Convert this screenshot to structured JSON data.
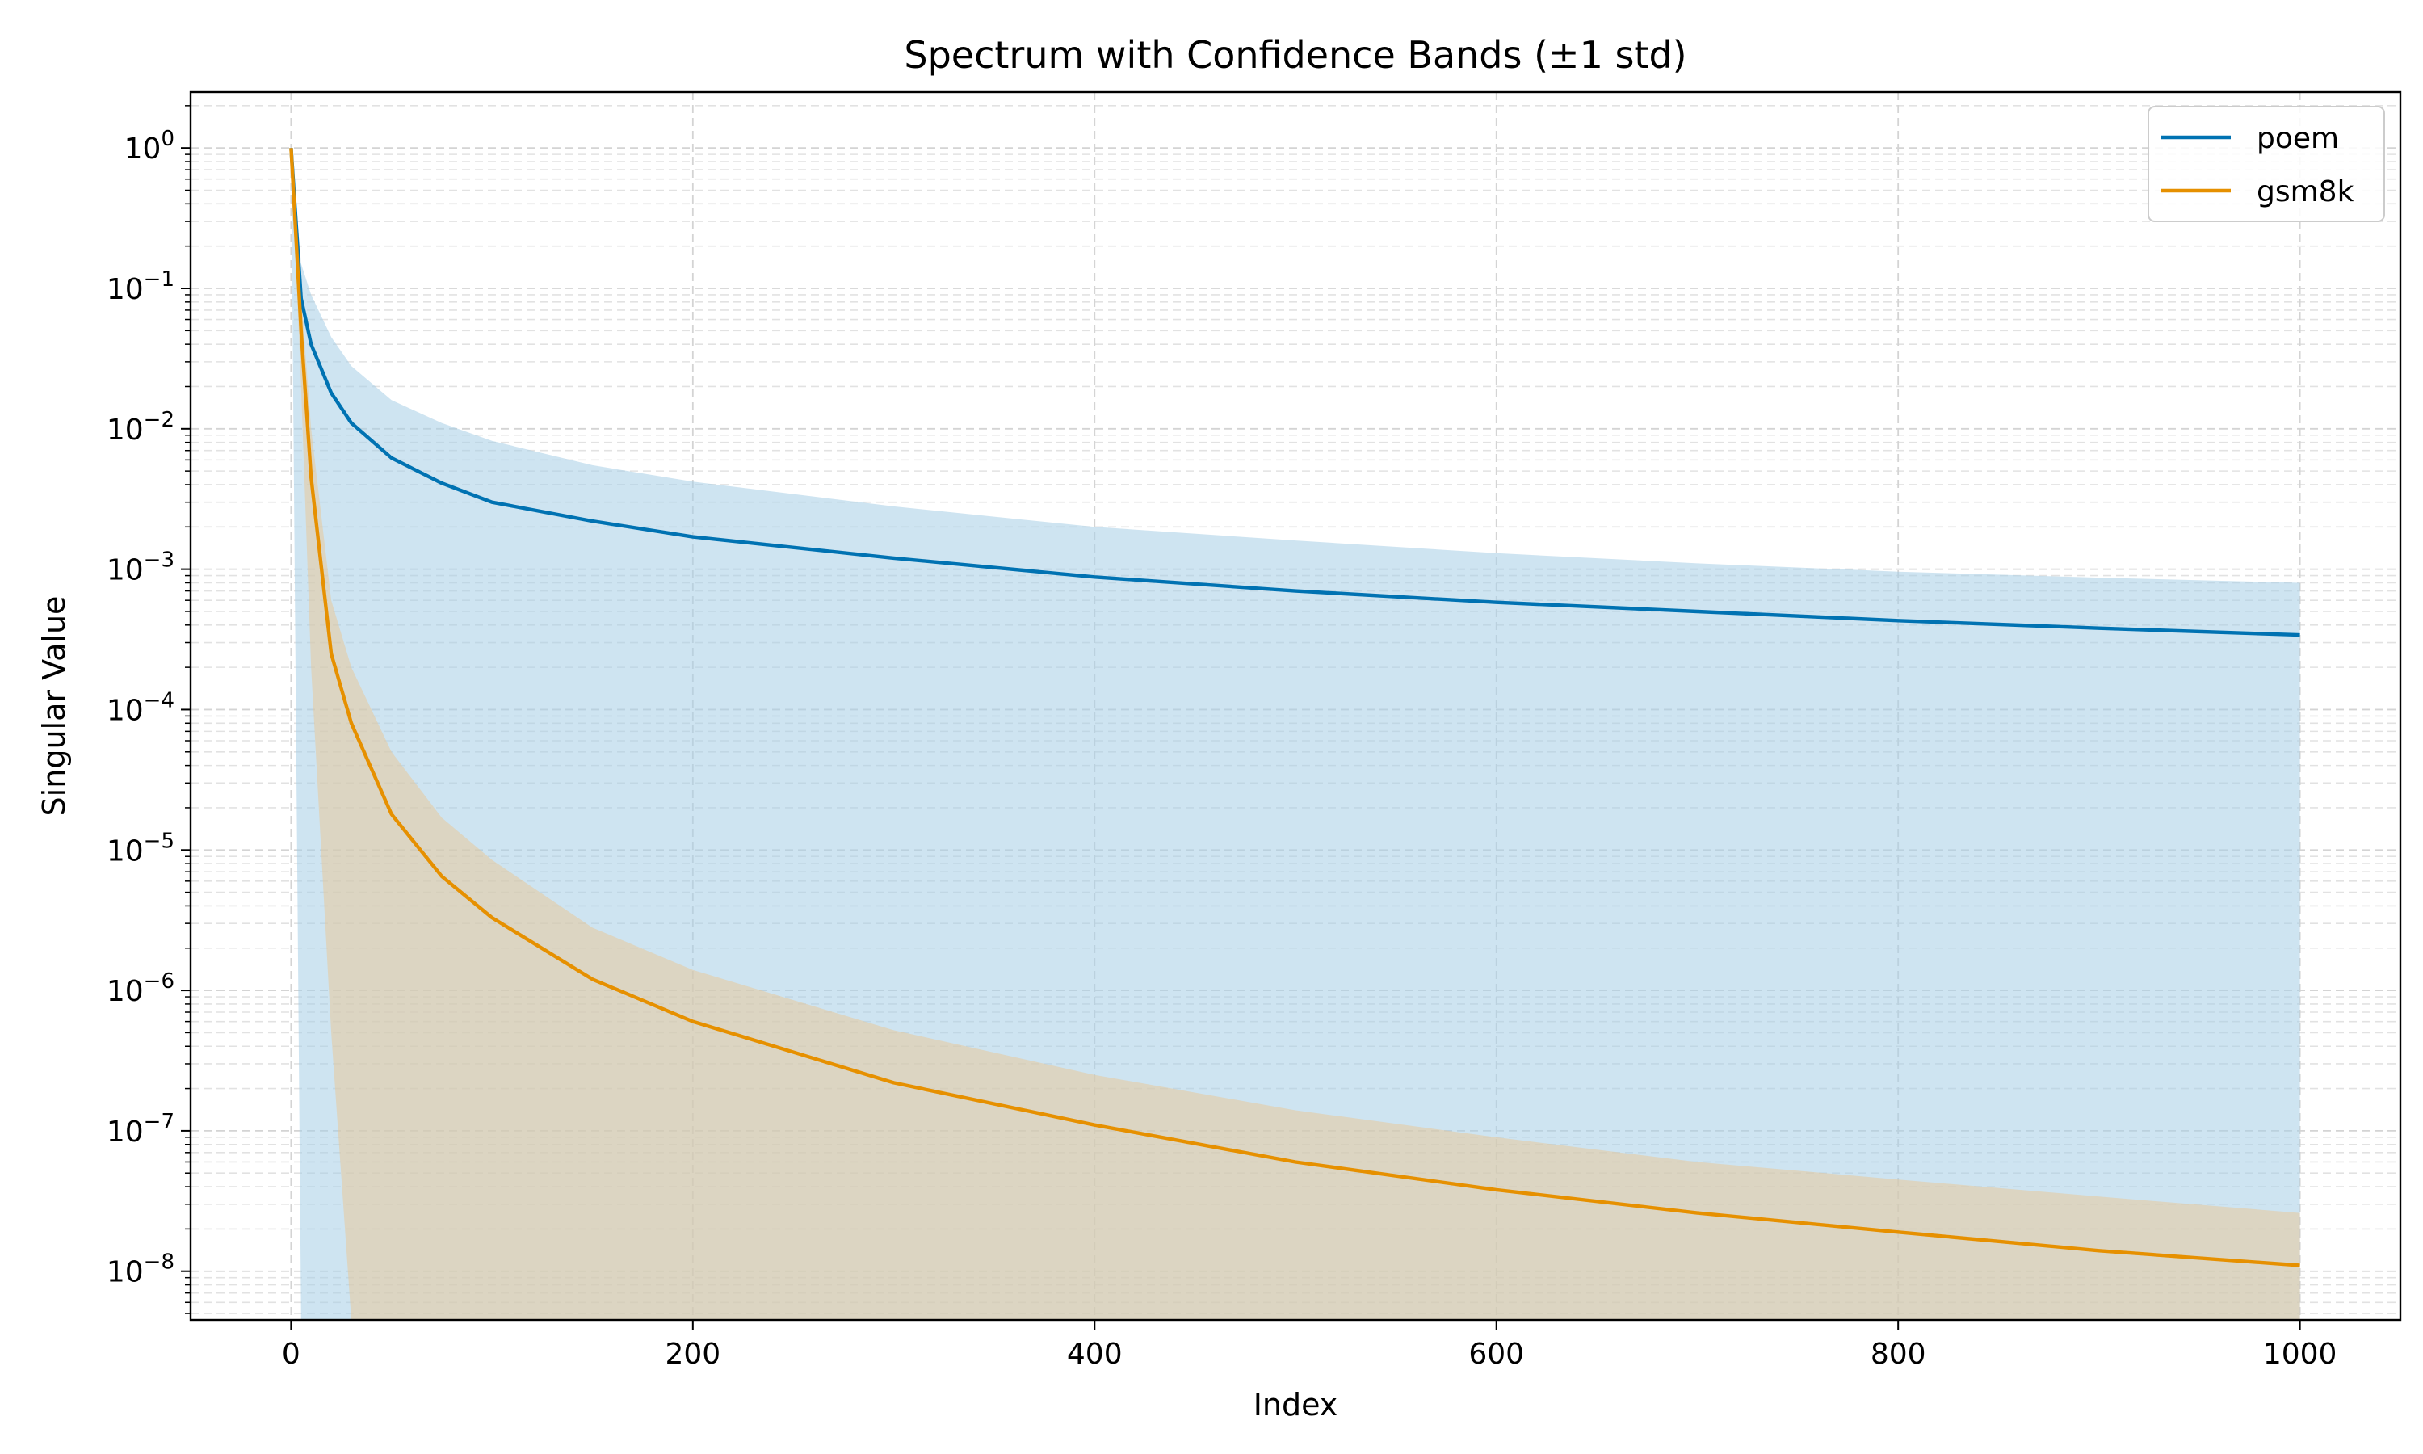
{
  "chart_data": {
    "type": "line",
    "title": "Spectrum with Confidence Bands (±1 std)",
    "xlabel": "Index",
    "ylabel": "Singular Value",
    "xlim": [
      -50,
      1050
    ],
    "ylim": [
      4.5e-09,
      2.5
    ],
    "yscale": "log",
    "grid": true,
    "legend_position": "top-right",
    "x_ticks": [
      0,
      200,
      400,
      600,
      800,
      1000
    ],
    "y_tick_exponents": [
      0,
      -1,
      -2,
      -3,
      -4,
      -5,
      -6,
      -7,
      -8
    ],
    "series": [
      {
        "name": "poem",
        "color": "#0072b2",
        "band_color": "#a6cde6",
        "x": [
          0,
          5,
          10,
          20,
          30,
          50,
          75,
          100,
          150,
          200,
          300,
          400,
          500,
          600,
          700,
          800,
          900,
          1000
        ],
        "values": [
          1.0,
          0.085,
          0.04,
          0.018,
          0.011,
          0.0062,
          0.0041,
          0.003,
          0.0022,
          0.0017,
          0.0012,
          0.00088,
          0.0007,
          0.00058,
          0.0005,
          0.00043,
          0.00038,
          0.00034
        ],
        "band_upper": [
          1.0,
          0.15,
          0.09,
          0.045,
          0.028,
          0.016,
          0.011,
          0.0082,
          0.0055,
          0.0042,
          0.0028,
          0.002,
          0.0016,
          0.0013,
          0.0011,
          0.00096,
          0.00087,
          0.0008
        ],
        "band_lower": [
          1.0,
          0.0,
          0.0,
          0.0,
          0.0,
          0.0,
          0.0,
          0.0,
          0.0,
          0.0,
          0.0,
          0.0,
          0.0,
          0.0,
          0.0,
          0.0,
          0.0,
          0.0
        ]
      },
      {
        "name": "gsm8k",
        "color": "#e69000",
        "band_color": "#e8c99a",
        "x": [
          0,
          5,
          10,
          20,
          30,
          50,
          75,
          100,
          150,
          200,
          300,
          400,
          500,
          600,
          700,
          800,
          900,
          1000
        ],
        "values": [
          1.0,
          0.05,
          0.0045,
          0.00025,
          8e-05,
          1.8e-05,
          6.5e-06,
          3.3e-06,
          1.2e-06,
          6e-07,
          2.2e-07,
          1.1e-07,
          6e-08,
          3.8e-08,
          2.6e-08,
          1.9e-08,
          1.4e-08,
          1.1e-08
        ],
        "band_upper": [
          1.0,
          0.09,
          0.01,
          0.0006,
          0.0002,
          5e-05,
          1.7e-05,
          8.5e-06,
          2.8e-06,
          1.4e-06,
          5.2e-07,
          2.5e-07,
          1.4e-07,
          9e-08,
          6e-08,
          4.5e-08,
          3.4e-08,
          2.6e-08
        ],
        "band_lower": [
          1.0,
          0.02,
          0.0002,
          5e-07,
          0.0,
          0.0,
          0.0,
          0.0,
          0.0,
          0.0,
          0.0,
          0.0,
          0.0,
          0.0,
          0.0,
          0.0,
          0.0,
          0.0
        ]
      }
    ]
  }
}
